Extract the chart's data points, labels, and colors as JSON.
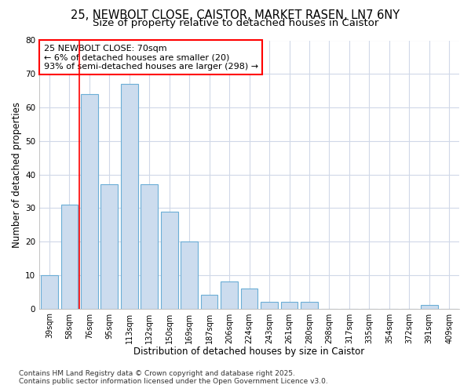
{
  "title1": "25, NEWBOLT CLOSE, CAISTOR, MARKET RASEN, LN7 6NY",
  "title2": "Size of property relative to detached houses in Caistor",
  "xlabel": "Distribution of detached houses by size in Caistor",
  "ylabel": "Number of detached properties",
  "categories": [
    "39sqm",
    "58sqm",
    "76sqm",
    "95sqm",
    "113sqm",
    "132sqm",
    "150sqm",
    "169sqm",
    "187sqm",
    "206sqm",
    "224sqm",
    "243sqm",
    "261sqm",
    "280sqm",
    "298sqm",
    "317sqm",
    "335sqm",
    "354sqm",
    "372sqm",
    "391sqm",
    "409sqm"
  ],
  "values": [
    10,
    31,
    64,
    37,
    67,
    37,
    29,
    20,
    4,
    8,
    6,
    2,
    2,
    2,
    0,
    0,
    0,
    0,
    0,
    1,
    0
  ],
  "bar_color": "#ccdcee",
  "bar_edge_color": "#6baed6",
  "red_line_x": 1.5,
  "annotation_title": "25 NEWBOLT CLOSE: 70sqm",
  "annotation_line1": "← 6% of detached houses are smaller (20)",
  "annotation_line2": "93% of semi-detached houses are larger (298) →",
  "ylim": [
    0,
    80
  ],
  "yticks": [
    0,
    10,
    20,
    30,
    40,
    50,
    60,
    70,
    80
  ],
  "footer1": "Contains HM Land Registry data © Crown copyright and database right 2025.",
  "footer2": "Contains public sector information licensed under the Open Government Licence v3.0.",
  "bg_color": "#ffffff",
  "plot_bg_color": "#ffffff",
  "grid_color": "#d0d8e8",
  "title_fontsize": 10.5,
  "subtitle_fontsize": 9.5,
  "axis_label_fontsize": 8.5,
  "tick_fontsize": 7,
  "annotation_fontsize": 8,
  "footer_fontsize": 6.5
}
